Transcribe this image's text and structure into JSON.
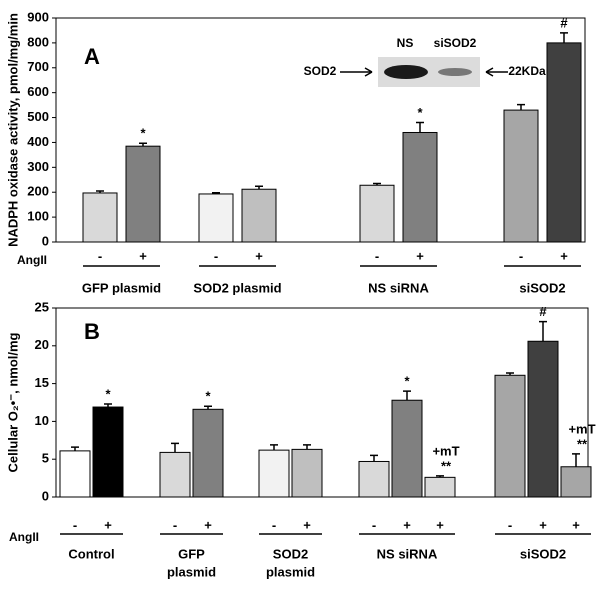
{
  "chart_data": [
    {
      "type": "bar",
      "panel": "A",
      "ylabel": "NADPH oxidase activity, pmol/mg/min",
      "xlabel": "AngII",
      "ylim": [
        0,
        900
      ],
      "yticks": [
        0,
        100,
        200,
        300,
        400,
        500,
        600,
        700,
        800,
        900
      ],
      "groups": [
        {
          "label": [
            "GFP plasmid"
          ],
          "signs": [
            "-",
            "+"
          ],
          "values": [
            197,
            385
          ],
          "errors": [
            8,
            12
          ],
          "colors": [
            "#d9d9d9",
            "#808080"
          ],
          "annotations": [
            [],
            [
              "*"
            ]
          ]
        },
        {
          "label": [
            "SOD2 plasmid"
          ],
          "signs": [
            "-",
            "+"
          ],
          "values": [
            193,
            212
          ],
          "errors": [
            5,
            12
          ],
          "colors": [
            "#f2f2f2",
            "#bfbfbf"
          ],
          "annotations": [
            [],
            []
          ]
        },
        {
          "label": [
            "NS siRNA"
          ],
          "signs": [
            "-",
            "+"
          ],
          "values": [
            228,
            440
          ],
          "errors": [
            7,
            40
          ],
          "colors": [
            "#d9d9d9",
            "#808080"
          ],
          "annotations": [
            [],
            [
              "*"
            ]
          ]
        },
        {
          "label": [
            "siSOD2"
          ],
          "signs": [
            "-",
            "+"
          ],
          "values": [
            530,
            800
          ],
          "errors": [
            22,
            40
          ],
          "colors": [
            "#a6a6a6",
            "#404040"
          ],
          "annotations": [
            [],
            [
              "#"
            ]
          ]
        }
      ],
      "inset": {
        "lanes": [
          "NS",
          "siSOD2"
        ],
        "band_label": "SOD2",
        "size_label": "22KDa"
      }
    },
    {
      "type": "bar",
      "panel": "B",
      "ylabel": "Cellular O₂•⁻, nmol/mg",
      "xlabel": "AngII",
      "ylim": [
        0,
        25
      ],
      "yticks": [
        0,
        5,
        10,
        15,
        20,
        25
      ],
      "groups": [
        {
          "label": [
            "Control"
          ],
          "signs": [
            "-",
            "+"
          ],
          "values": [
            6.1,
            11.9
          ],
          "errors": [
            0.5,
            0.4
          ],
          "colors": [
            "#ffffff",
            "#000000"
          ],
          "annotations": [
            [],
            [
              "*"
            ]
          ]
        },
        {
          "label": [
            "GFP",
            "plasmid"
          ],
          "signs": [
            "-",
            "+"
          ],
          "values": [
            5.9,
            11.6
          ],
          "errors": [
            1.2,
            0.4
          ],
          "colors": [
            "#d9d9d9",
            "#808080"
          ],
          "annotations": [
            [],
            [
              "*"
            ]
          ]
        },
        {
          "label": [
            "SOD2",
            "plasmid"
          ],
          "signs": [
            "-",
            "+"
          ],
          "values": [
            6.2,
            6.3
          ],
          "errors": [
            0.7,
            0.6
          ],
          "colors": [
            "#f2f2f2",
            "#bfbfbf"
          ],
          "annotations": [
            [],
            []
          ]
        },
        {
          "label": [
            "NS siRNA"
          ],
          "signs": [
            "-",
            "+",
            "+"
          ],
          "values": [
            4.7,
            12.8,
            2.6
          ],
          "errors": [
            0.8,
            1.2,
            0.2
          ],
          "colors": [
            "#d9d9d9",
            "#808080",
            "#d9d9d9"
          ],
          "annotations": [
            [],
            [
              "*"
            ],
            [
              "+mT",
              "**"
            ]
          ]
        },
        {
          "label": [
            "siSOD2"
          ],
          "signs": [
            "-",
            "+",
            "+"
          ],
          "values": [
            16.1,
            20.6,
            4.0
          ],
          "errors": [
            0.3,
            2.6,
            1.7
          ],
          "colors": [
            "#a6a6a6",
            "#404040",
            "#a6a6a6"
          ],
          "annotations": [
            [],
            [
              "#"
            ],
            [
              "+mT",
              "**"
            ]
          ]
        }
      ]
    }
  ]
}
